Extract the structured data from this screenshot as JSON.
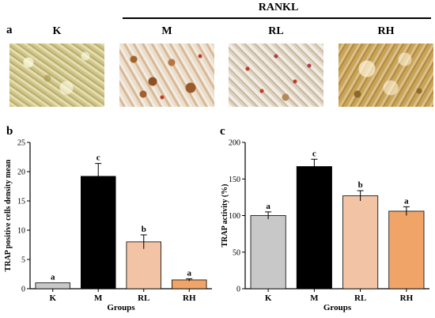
{
  "figure": {
    "panel_a_label": "a",
    "panel_b_label": "b",
    "panel_c_label": "c",
    "bracket_label": "RANKL",
    "image_labels": [
      "K",
      "M",
      "RL",
      "RH"
    ]
  },
  "colors": {
    "K": "#c8c8c8",
    "M": "#000000",
    "RL": "#f2c3a4",
    "RH": "#f0a467"
  },
  "chart_data": [
    {
      "type": "bar",
      "panel": "b",
      "categories": [
        "K",
        "M",
        "RL",
        "RH"
      ],
      "values": [
        1.0,
        19.2,
        8.0,
        1.5
      ],
      "errors": [
        0.0,
        2.2,
        1.2,
        0.2
      ],
      "significance": [
        "a",
        "c",
        "b",
        "a"
      ],
      "xlabel": "Groups",
      "ylabel": "TRAP positive cells density mean",
      "ylim": [
        0,
        25
      ],
      "yticks": [
        0,
        5,
        10,
        15,
        20,
        25
      ],
      "grid": false
    },
    {
      "type": "bar",
      "panel": "c",
      "categories": [
        "K",
        "M",
        "RL",
        "RH"
      ],
      "values": [
        100,
        167,
        127,
        106
      ],
      "errors": [
        5,
        10,
        7,
        6
      ],
      "significance": [
        "a",
        "c",
        "b",
        "a"
      ],
      "xlabel": "Groups",
      "ylabel": "TRAP activity (%)",
      "ylim": [
        0,
        200
      ],
      "yticks": [
        0,
        50,
        100,
        150,
        200
      ],
      "grid": false
    }
  ]
}
